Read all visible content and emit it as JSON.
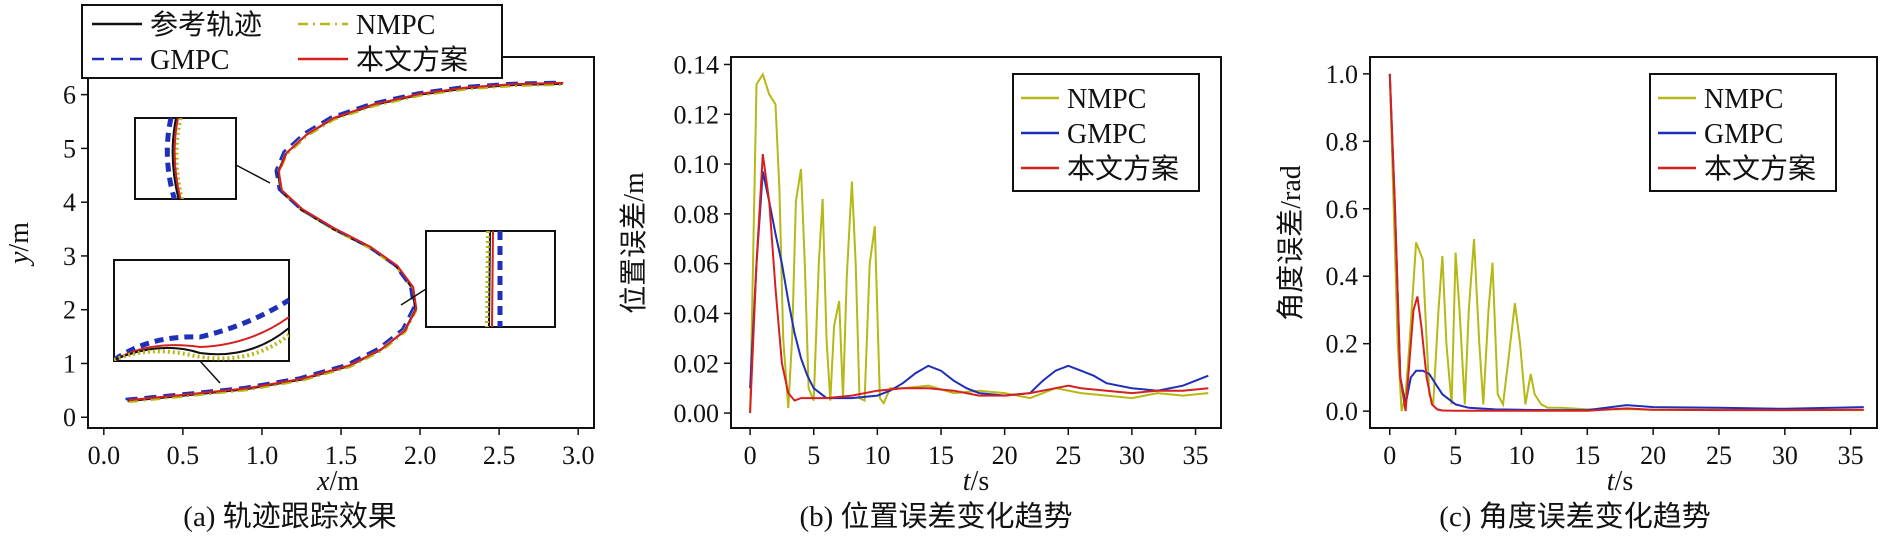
{
  "captions": [
    "(a) 轨迹跟踪效果",
    "(b) 位置误差变化趋势",
    "(c) 角度误差变化趋势"
  ],
  "colors": {
    "ref": "#111111",
    "nmpc": "#b5b815",
    "gmpc": "#1f2fb8",
    "ours": "#d62020"
  },
  "chart_data": [
    {
      "type": "line",
      "xlabel": "x/m",
      "ylabel": "y/m",
      "xlim": [
        -0.1,
        3.1
      ],
      "ylim": [
        -0.2,
        6.7
      ],
      "xticks": [
        "0.0",
        "0.5",
        "1.0",
        "1.5",
        "2.0",
        "2.5",
        "3.0"
      ],
      "yticks": [
        "0",
        "1",
        "2",
        "3",
        "4",
        "5",
        "6"
      ],
      "legend": {
        "placement": "top",
        "entries": [
          "参考轨迹",
          "NMPC",
          "GMPC",
          "本文方案"
        ]
      },
      "insets": 3,
      "series": [
        {
          "name": "参考轨迹",
          "color": "#111111",
          "style": "solid"
        },
        {
          "name": "NMPC",
          "color": "#b5b815",
          "style": "dashdot"
        },
        {
          "name": "GMPC",
          "color": "#1f2fb8",
          "style": "dashed"
        },
        {
          "name": "本文方案",
          "color": "#d62020",
          "style": "solid"
        }
      ],
      "path": {
        "x": [
          0.15,
          0.5,
          0.9,
          1.25,
          1.55,
          1.75,
          1.9,
          1.97,
          1.95,
          1.85,
          1.68,
          1.45,
          1.25,
          1.12,
          1.1,
          1.15,
          1.28,
          1.45,
          1.7,
          2.0,
          2.3,
          2.6,
          2.9
        ],
        "y": [
          0.3,
          0.4,
          0.52,
          0.7,
          0.95,
          1.25,
          1.6,
          2.0,
          2.4,
          2.8,
          3.15,
          3.5,
          3.85,
          4.2,
          4.55,
          4.9,
          5.25,
          5.55,
          5.8,
          6.0,
          6.12,
          6.18,
          6.2
        ]
      }
    },
    {
      "type": "line",
      "xlabel": "t/s",
      "ylabel": "位置误差/m",
      "xlim": [
        -1.5,
        37
      ],
      "ylim": [
        -0.006,
        0.143
      ],
      "xticks": [
        "0",
        "5",
        "10",
        "15",
        "20",
        "25",
        "30",
        "35"
      ],
      "yticks": [
        "0.00",
        "0.02",
        "0.04",
        "0.06",
        "0.08",
        "0.10",
        "0.12",
        "0.14"
      ],
      "legend": {
        "placement": "top-right",
        "entries": [
          "NMPC",
          "GMPC",
          "本文方案"
        ]
      },
      "series": [
        {
          "name": "NMPC",
          "color": "#b5b815",
          "x": [
            0,
            0.5,
            1,
            1.5,
            2,
            2.3,
            2.6,
            3,
            3.3,
            3.6,
            4,
            4.3,
            4.6,
            5,
            5.4,
            5.7,
            6,
            6.3,
            6.6,
            7,
            7.3,
            7.6,
            8,
            8.3,
            8.6,
            9,
            9.4,
            9.8,
            10.2,
            10.5,
            11,
            12,
            14,
            16,
            18,
            20,
            22,
            24,
            26,
            28,
            30,
            32,
            34,
            36
          ],
          "y": [
            0,
            0.132,
            0.136,
            0.128,
            0.124,
            0.09,
            0.03,
            0.002,
            0.03,
            0.085,
            0.098,
            0.06,
            0.01,
            0.005,
            0.06,
            0.086,
            0.03,
            0.005,
            0.035,
            0.045,
            0.006,
            0.055,
            0.093,
            0.06,
            0.006,
            0.005,
            0.06,
            0.075,
            0.006,
            0.004,
            0.01,
            0.01,
            0.011,
            0.008,
            0.009,
            0.008,
            0.006,
            0.01,
            0.008,
            0.007,
            0.006,
            0.008,
            0.007,
            0.008
          ]
        },
        {
          "name": "GMPC",
          "color": "#1f2fb8",
          "x": [
            0,
            0.5,
            1,
            1.5,
            2,
            2.5,
            3,
            3.5,
            4,
            4.5,
            5,
            6,
            8,
            10,
            11,
            12,
            13,
            14,
            15,
            16,
            17,
            18,
            20,
            22,
            23,
            24,
            25,
            26,
            27,
            28,
            30,
            32,
            34,
            36
          ],
          "y": [
            0.01,
            0.06,
            0.097,
            0.085,
            0.072,
            0.06,
            0.045,
            0.032,
            0.022,
            0.015,
            0.01,
            0.006,
            0.006,
            0.007,
            0.009,
            0.012,
            0.016,
            0.019,
            0.017,
            0.013,
            0.01,
            0.008,
            0.007,
            0.008,
            0.013,
            0.017,
            0.019,
            0.017,
            0.015,
            0.012,
            0.01,
            0.009,
            0.011,
            0.015
          ]
        },
        {
          "name": "本文方案",
          "color": "#d62020",
          "x": [
            0,
            0.5,
            1,
            1.5,
            2,
            2.5,
            3,
            3.5,
            4,
            6,
            8,
            10,
            12,
            14,
            16,
            18,
            20,
            22,
            24,
            25,
            26,
            28,
            30,
            32,
            34,
            36
          ],
          "y": [
            0.0,
            0.06,
            0.104,
            0.085,
            0.05,
            0.02,
            0.008,
            0.005,
            0.006,
            0.006,
            0.007,
            0.009,
            0.01,
            0.01,
            0.009,
            0.007,
            0.007,
            0.008,
            0.01,
            0.011,
            0.01,
            0.009,
            0.008,
            0.009,
            0.009,
            0.01
          ]
        }
      ]
    },
    {
      "type": "line",
      "xlabel": "t/s",
      "ylabel": "角度误差/rad",
      "xlim": [
        -1.5,
        37
      ],
      "ylim": [
        -0.05,
        1.05
      ],
      "xticks": [
        "0",
        "5",
        "10",
        "15",
        "20",
        "25",
        "30",
        "35"
      ],
      "yticks": [
        "0.0",
        "0.2",
        "0.4",
        "0.6",
        "0.8",
        "1.0"
      ],
      "legend": {
        "placement": "top-right",
        "entries": [
          "NMPC",
          "GMPC",
          "本文方案"
        ]
      },
      "series": [
        {
          "name": "NMPC",
          "color": "#b5b815",
          "x": [
            0,
            0.3,
            0.6,
            0.9,
            1.2,
            1.5,
            2,
            2.5,
            3,
            3.3,
            3.7,
            4,
            4.3,
            4.7,
            5,
            5.3,
            5.7,
            6,
            6.4,
            6.8,
            7.1,
            7.5,
            7.8,
            8.2,
            8.6,
            9,
            9.5,
            9.9,
            10.3,
            10.7,
            11,
            11.5,
            12,
            13,
            15,
            18,
            20,
            25,
            30,
            36
          ],
          "y": [
            1.0,
            0.6,
            0.2,
            0.0,
            0.05,
            0.2,
            0.5,
            0.45,
            0.05,
            0.02,
            0.3,
            0.46,
            0.2,
            0.02,
            0.47,
            0.3,
            0.02,
            0.3,
            0.51,
            0.2,
            0.02,
            0.3,
            0.44,
            0.05,
            0.02,
            0.15,
            0.32,
            0.2,
            0.02,
            0.11,
            0.05,
            0.02,
            0.01,
            0.01,
            0.005,
            0.006,
            0.004,
            0.004,
            0.003,
            0.003
          ]
        },
        {
          "name": "GMPC",
          "color": "#1f2fb8",
          "x": [
            0,
            0.4,
            0.8,
            1.2,
            1.6,
            2,
            2.5,
            3,
            3.5,
            4,
            5,
            6,
            8,
            10,
            12,
            15,
            18,
            20,
            25,
            30,
            36
          ],
          "y": [
            1.0,
            0.6,
            0.1,
            0.02,
            0.1,
            0.12,
            0.12,
            0.11,
            0.08,
            0.05,
            0.02,
            0.01,
            0.005,
            0.004,
            0.003,
            0.003,
            0.018,
            0.012,
            0.01,
            0.007,
            0.012
          ]
        },
        {
          "name": "本文方案",
          "color": "#d62020",
          "x": [
            0,
            0.4,
            0.8,
            1.2,
            1.5,
            1.8,
            2.1,
            2.4,
            2.8,
            3.2,
            3.6,
            4,
            5,
            8,
            10,
            15,
            18,
            20,
            25,
            30,
            36
          ],
          "y": [
            1.0,
            0.6,
            0.1,
            0.0,
            0.15,
            0.3,
            0.34,
            0.25,
            0.1,
            0.02,
            0.005,
            0.002,
            0.001,
            0.001,
            0.001,
            0.001,
            0.008,
            0.004,
            0.003,
            0.003,
            0.004
          ]
        }
      ]
    }
  ]
}
